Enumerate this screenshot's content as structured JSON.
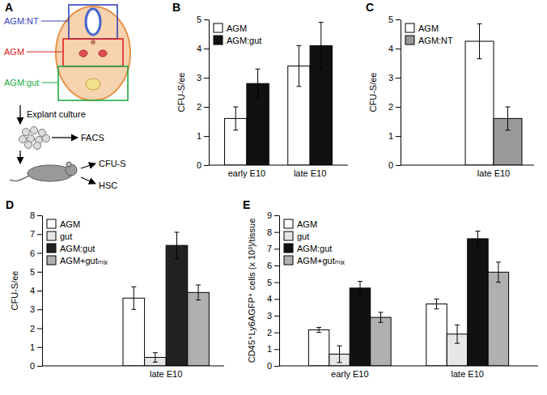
{
  "diagram": {
    "panel": "A",
    "regions": [
      {
        "label": "AGM:NT",
        "color": "#3344bb"
      },
      {
        "label": "AGM",
        "color": "#dd2222"
      },
      {
        "label": "AGM:gut",
        "color": "#22aa44"
      }
    ],
    "steps": [
      "Explant culture",
      "FACS",
      "CFU-S",
      "HSC"
    ]
  },
  "chart_data": [
    {
      "panel": "B",
      "type": "bar",
      "y_label": "CFU-S/ee",
      "categories": [
        "early E10",
        "late E10"
      ],
      "ylim": [
        0,
        5
      ],
      "yticks": [
        0,
        1,
        2,
        3,
        4,
        5
      ],
      "legend": "upper left",
      "series": [
        {
          "name": "AGM",
          "color": "#ffffff",
          "values": [
            1.6,
            3.4
          ],
          "errors": [
            0.4,
            0.7
          ]
        },
        {
          "name": "AGM:gut",
          "color": "#111111",
          "values": [
            2.8,
            4.1
          ],
          "errors": [
            0.5,
            0.8
          ]
        }
      ]
    },
    {
      "panel": "C",
      "type": "bar",
      "y_label": "CFU-S/ee",
      "categories": [
        "late E10"
      ],
      "ylim": [
        0,
        5
      ],
      "yticks": [
        0,
        1,
        2,
        3,
        4,
        5
      ],
      "legend": "upper left",
      "series": [
        {
          "name": "AGM",
          "color": "#ffffff",
          "values": [
            4.25
          ],
          "errors": [
            0.6
          ]
        },
        {
          "name": "AGM:NT",
          "color": "#999999",
          "values": [
            1.6
          ],
          "errors": [
            0.4
          ]
        }
      ]
    },
    {
      "panel": "D",
      "type": "bar",
      "y_label": "CFU-S/ee",
      "categories": [
        "late E10"
      ],
      "ylim": [
        0,
        8
      ],
      "yticks": [
        0,
        1,
        2,
        3,
        4,
        5,
        6,
        7,
        8
      ],
      "legend": "upper left",
      "series": [
        {
          "name": "AGM",
          "color": "#ffffff",
          "values": [
            3.6
          ],
          "errors": [
            0.6
          ]
        },
        {
          "name": "gut",
          "color": "#e6e6e6",
          "values": [
            0.45
          ],
          "errors": [
            0.25
          ]
        },
        {
          "name": "AGM:gut",
          "color": "#222222",
          "values": [
            6.4
          ],
          "errors": [
            0.7
          ]
        },
        {
          "name": "AGM+gutₘᵢₓ",
          "color": "#b0b0b0",
          "values": [
            3.9
          ],
          "errors": [
            0.4
          ]
        }
      ]
    },
    {
      "panel": "E",
      "type": "bar",
      "y_label": "CD45⁺Ly6AGFP⁺ cells (x 10³)/tissue",
      "categories": [
        "early E10",
        "late E10"
      ],
      "ylim": [
        0,
        9
      ],
      "yticks": [
        0,
        1,
        2,
        3,
        4,
        5,
        6,
        7,
        8,
        9
      ],
      "legend": "upper left",
      "series": [
        {
          "name": "AGM",
          "color": "#ffffff",
          "values": [
            2.15,
            3.7
          ],
          "errors": [
            0.15,
            0.3
          ]
        },
        {
          "name": "gut",
          "color": "#e6e6e6",
          "values": [
            0.7,
            1.9
          ],
          "errors": [
            0.5,
            0.55
          ]
        },
        {
          "name": "AGM:gut",
          "color": "#111111",
          "values": [
            4.65,
            7.6
          ],
          "errors": [
            0.4,
            0.45
          ]
        },
        {
          "name": "AGM+gutₘᵢₓ",
          "color": "#b0b0b0",
          "values": [
            2.9,
            5.6
          ],
          "errors": [
            0.3,
            0.6
          ]
        }
      ]
    }
  ]
}
